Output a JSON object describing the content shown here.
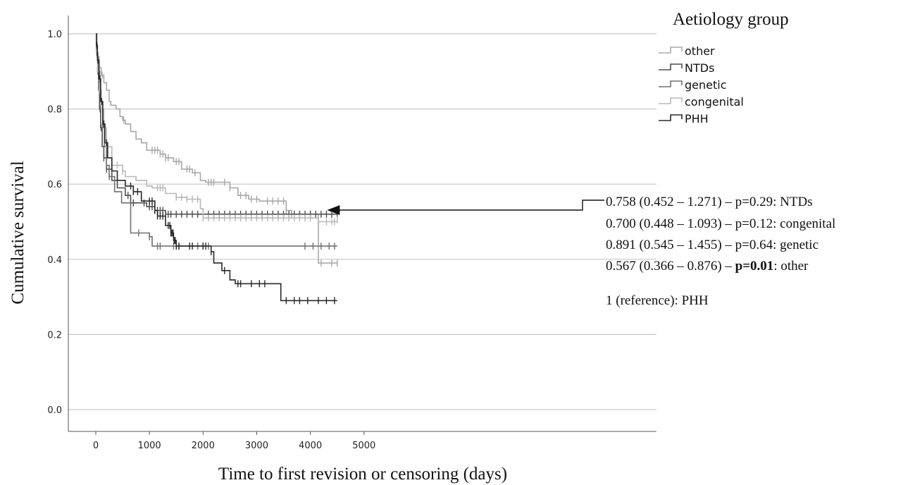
{
  "chart_data": {
    "type": "line",
    "title": "",
    "xlabel": "Time to first revision or censoring (days)",
    "ylabel": "Cumulative survival",
    "xlim": [
      -250,
      5250
    ],
    "ylim": [
      -0.05,
      1.05
    ],
    "xticks": [
      "0",
      "1000",
      "2000",
      "3000",
      "4000",
      "5000"
    ],
    "xtick_values": [
      0,
      1000,
      2000,
      3000,
      4000,
      5000
    ],
    "yticks": [
      "0.0",
      "0.2",
      "0.4",
      "0.6",
      "0.8",
      "1.0"
    ],
    "ytick_values": [
      0,
      0.2,
      0.4,
      0.6,
      0.8,
      1.0
    ],
    "grid": "horizontal",
    "legend_title": "Aetiology group",
    "legend_position": "top-right",
    "series": [
      {
        "name": "other",
        "color": "#a8a8a8",
        "points": [
          [
            0,
            1.0
          ],
          [
            10,
            0.97
          ],
          [
            30,
            0.94
          ],
          [
            60,
            0.91
          ],
          [
            100,
            0.89
          ],
          [
            150,
            0.87
          ],
          [
            200,
            0.85
          ],
          [
            250,
            0.82
          ],
          [
            280,
            0.81
          ],
          [
            380,
            0.8
          ],
          [
            450,
            0.78
          ],
          [
            500,
            0.77
          ],
          [
            550,
            0.76
          ],
          [
            650,
            0.74
          ],
          [
            750,
            0.72
          ],
          [
            850,
            0.71
          ],
          [
            950,
            0.69
          ],
          [
            1200,
            0.68
          ],
          [
            1300,
            0.67
          ],
          [
            1450,
            0.66
          ],
          [
            1600,
            0.64
          ],
          [
            1800,
            0.63
          ],
          [
            1950,
            0.61
          ],
          [
            2050,
            0.605
          ],
          [
            2500,
            0.59
          ],
          [
            2650,
            0.57
          ],
          [
            2850,
            0.56
          ],
          [
            3050,
            0.555
          ],
          [
            3550,
            0.53
          ],
          [
            3650,
            0.52
          ],
          [
            4150,
            0.39
          ],
          [
            4500,
            0.39
          ]
        ],
        "censor": [
          120,
          520,
          1050,
          1100,
          1150,
          1200,
          1250,
          1300,
          1350,
          1500,
          1550,
          1700,
          1750,
          1850,
          2100,
          2150,
          2200,
          2400,
          2500,
          2700,
          2800,
          2900,
          3000,
          3200,
          3300,
          3400,
          3500,
          3550,
          3650,
          3700,
          3800,
          4000,
          4200,
          4400,
          4500
        ]
      },
      {
        "name": "NTDs",
        "color": "#505050",
        "points": [
          [
            0,
            1.0
          ],
          [
            10,
            0.95
          ],
          [
            30,
            0.9
          ],
          [
            50,
            0.85
          ],
          [
            70,
            0.8
          ],
          [
            90,
            0.75
          ],
          [
            120,
            0.7
          ],
          [
            150,
            0.67
          ],
          [
            200,
            0.64
          ],
          [
            300,
            0.61
          ],
          [
            400,
            0.59
          ],
          [
            550,
            0.57
          ],
          [
            650,
            0.55
          ],
          [
            950,
            0.54
          ],
          [
            1100,
            0.53
          ],
          [
            1300,
            0.52
          ],
          [
            4500,
            0.52
          ]
        ],
        "censor": [
          20,
          40,
          80,
          100,
          150,
          200,
          600,
          700,
          900,
          1000,
          1050,
          1100,
          1150,
          1200,
          1250,
          1300,
          1350,
          1400,
          1500,
          1600,
          1700,
          1800,
          1900,
          2000,
          2100,
          2200,
          2300,
          2400,
          2500,
          2600,
          2700,
          2800,
          2900,
          3000,
          3100,
          3200,
          3300,
          3400,
          3500,
          3600,
          3700,
          3800,
          3900,
          4000,
          4100,
          4200,
          4300,
          4400,
          4500
        ]
      },
      {
        "name": "genetic",
        "color": "#707070",
        "points": [
          [
            0,
            1.0
          ],
          [
            20,
            0.95
          ],
          [
            40,
            0.9
          ],
          [
            70,
            0.85
          ],
          [
            100,
            0.8
          ],
          [
            130,
            0.75
          ],
          [
            160,
            0.7
          ],
          [
            200,
            0.65
          ],
          [
            250,
            0.62
          ],
          [
            350,
            0.58
          ],
          [
            480,
            0.55
          ],
          [
            650,
            0.47
          ],
          [
            1000,
            0.46
          ],
          [
            1050,
            0.435
          ],
          [
            4500,
            0.435
          ]
        ],
        "censor": [
          70,
          250,
          800,
          1000,
          1150,
          1200,
          1450,
          1500,
          1550,
          1900,
          2000,
          2100,
          3900,
          4050,
          4200,
          4350,
          4450
        ]
      },
      {
        "name": "congenital",
        "color": "#b8b8b8",
        "points": [
          [
            0,
            1.0
          ],
          [
            15,
            0.95
          ],
          [
            30,
            0.9
          ],
          [
            60,
            0.85
          ],
          [
            100,
            0.8
          ],
          [
            150,
            0.75
          ],
          [
            200,
            0.7
          ],
          [
            300,
            0.65
          ],
          [
            500,
            0.635
          ],
          [
            550,
            0.62
          ],
          [
            750,
            0.61
          ],
          [
            950,
            0.595
          ],
          [
            1050,
            0.59
          ],
          [
            1300,
            0.575
          ],
          [
            1500,
            0.565
          ],
          [
            1700,
            0.56
          ],
          [
            1950,
            0.535
          ],
          [
            2000,
            0.51
          ],
          [
            4150,
            0.5
          ],
          [
            4500,
            0.505
          ]
        ],
        "censor": [
          60,
          300,
          400,
          500,
          1150,
          1200,
          1250,
          1500,
          1600,
          1700,
          1800,
          1900,
          2000,
          2100,
          2200,
          2300,
          2400,
          2500,
          2600,
          2700,
          2800,
          2900,
          3000,
          3100,
          3200,
          3300,
          3400,
          3500,
          3600,
          3700,
          3800,
          3900,
          4000,
          4300,
          4400,
          4450,
          4500
        ]
      },
      {
        "name": "PHH",
        "color": "#282828",
        "points": [
          [
            0,
            1.0
          ],
          [
            10,
            0.97
          ],
          [
            30,
            0.93
          ],
          [
            60,
            0.88
          ],
          [
            90,
            0.82
          ],
          [
            130,
            0.76
          ],
          [
            170,
            0.71
          ],
          [
            220,
            0.67
          ],
          [
            300,
            0.635
          ],
          [
            400,
            0.61
          ],
          [
            550,
            0.595
          ],
          [
            700,
            0.58
          ],
          [
            850,
            0.555
          ],
          [
            1100,
            0.53
          ],
          [
            1150,
            0.515
          ],
          [
            1300,
            0.49
          ],
          [
            1400,
            0.47
          ],
          [
            1450,
            0.45
          ],
          [
            1500,
            0.435
          ],
          [
            2150,
            0.42
          ],
          [
            2200,
            0.39
          ],
          [
            2350,
            0.37
          ],
          [
            2500,
            0.345
          ],
          [
            2600,
            0.335
          ],
          [
            3450,
            0.29
          ],
          [
            4500,
            0.29
          ]
        ],
        "censor": [
          20,
          40,
          80,
          110,
          150,
          200,
          650,
          700,
          780,
          1000,
          1050,
          1100,
          1150,
          1200,
          1250,
          1350,
          1380,
          1400,
          1420,
          1440,
          1460,
          1480,
          1500,
          1550,
          1750,
          1800,
          2000,
          2050,
          2150,
          2400,
          2650,
          2700,
          2900,
          3050,
          3150,
          3550,
          3700,
          3800,
          3950,
          4150,
          4300,
          4450
        ]
      }
    ],
    "annotations": [
      {
        "line_pre": "0.758 (0.452 – 1.271) – p=0.29: NTDs",
        "bold": "",
        "line_post": ""
      },
      {
        "line_pre": "0.700 (0.448 – 1.093) – p=0.12: congenital",
        "bold": "",
        "line_post": ""
      },
      {
        "line_pre": "0.891 (0.545 – 1.455) – p=0.64: genetic",
        "bold": "",
        "line_post": ""
      },
      {
        "line_pre": "0.567 (0.366 – 0.876) – ",
        "bold": "p=0.01",
        "line_post": ": other"
      },
      {
        "line_pre": "1 (reference): PHH",
        "bold": "",
        "line_post": ""
      }
    ],
    "arrow_target": [
      4050,
      0.53
    ]
  }
}
